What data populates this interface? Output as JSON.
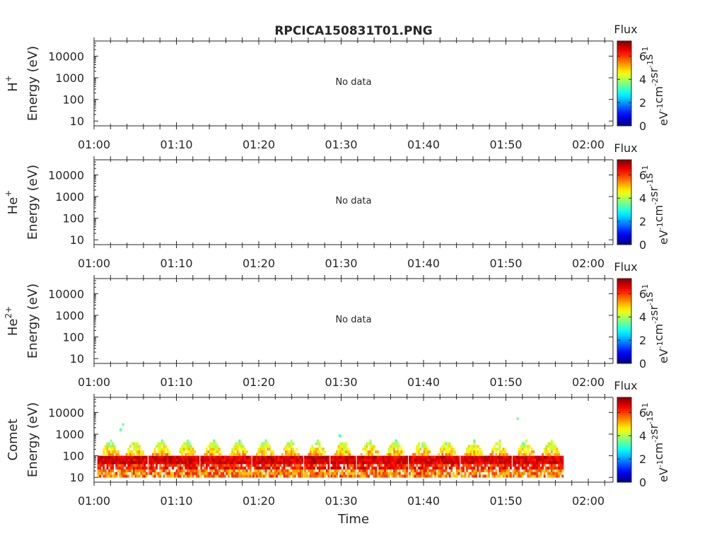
{
  "title": "RPCICA150831T01.PNG",
  "chart_data": [
    {
      "type": "heatmap",
      "ylabel_species": "H",
      "ylabel_species_sup": "+",
      "ylabel_units": "Energy (eV)",
      "status": "No data",
      "yticks": [
        "10",
        "100",
        "1000",
        "10000"
      ],
      "xticks": [
        "01:00",
        "01:10",
        "01:20",
        "01:30",
        "01:40",
        "01:50",
        "02:00"
      ],
      "colorbar": {
        "label": "Flux",
        "ticks": [
          "0",
          "2",
          "4",
          "6"
        ],
        "range": [
          0,
          7.3
        ],
        "units": "eV-1cm-2sr-1s-1"
      },
      "ylim_ev": [
        6,
        50000
      ],
      "xlim_min": [
        0,
        63
      ],
      "cells": []
    },
    {
      "type": "heatmap",
      "ylabel_species": "He",
      "ylabel_species_sup": "+",
      "ylabel_units": "Energy (eV)",
      "status": "No data",
      "yticks": [
        "10",
        "100",
        "1000",
        "10000"
      ],
      "xticks": [
        "01:00",
        "01:10",
        "01:20",
        "01:30",
        "01:40",
        "01:50",
        "02:00"
      ],
      "colorbar": {
        "label": "Flux",
        "ticks": [
          "0",
          "2",
          "4",
          "6"
        ],
        "range": [
          0,
          7.3
        ],
        "units": "eV-1cm-2sr-1s-1"
      },
      "ylim_ev": [
        6,
        50000
      ],
      "xlim_min": [
        0,
        63
      ],
      "cells": []
    },
    {
      "type": "heatmap",
      "ylabel_species": "He",
      "ylabel_species_sup": "2+",
      "ylabel_units": "Energy (eV)",
      "status": "No data",
      "yticks": [
        "10",
        "100",
        "1000",
        "10000"
      ],
      "xticks": [
        "01:00",
        "01:10",
        "01:20",
        "01:30",
        "01:40",
        "01:50",
        "02:00"
      ],
      "colorbar": {
        "label": "Flux",
        "ticks": [
          "0",
          "2",
          "4",
          "6"
        ],
        "range": [
          0,
          7.3
        ],
        "units": "eV-1cm-2sr-1s-1"
      },
      "ylim_ev": [
        6,
        50000
      ],
      "xlim_min": [
        0,
        63
      ],
      "cells": []
    },
    {
      "type": "heatmap",
      "ylabel_species": "Comet",
      "ylabel_species_sup": "",
      "ylabel_units": "Energy (eV)",
      "status": "",
      "xlabel": "Time",
      "yticks": [
        "10",
        "100",
        "1000",
        "10000"
      ],
      "xticks": [
        "01:00",
        "01:10",
        "01:20",
        "01:30",
        "01:40",
        "01:50",
        "02:00"
      ],
      "colorbar": {
        "label": "Flux",
        "ticks": [
          "0",
          "2",
          "4",
          "6"
        ],
        "range": [
          0,
          7.3
        ],
        "units": "eV-1cm-2sr-1s-1"
      },
      "ylim_ev": [
        6,
        50000
      ],
      "xlim_min": [
        0,
        63
      ],
      "pulses": {
        "start_min": [
          0.4,
          3.4,
          6.6,
          9.7,
          12.9,
          16.0,
          19.2,
          22.3,
          25.5,
          28.7,
          31.9,
          35.0,
          38.2,
          41.3,
          44.5,
          47.6,
          50.8,
          53.9
        ],
        "duration_min": 2.9,
        "peak_ev": 55,
        "peak_flux": 7.1
      },
      "isolated_points": [
        {
          "t_min": 3.4,
          "ev": 2800,
          "flux": 3.5
        },
        {
          "t_min": 3.1,
          "ev": 1600,
          "flux": 3.2
        },
        {
          "t_min": 29.7,
          "ev": 850,
          "flux": 3.0
        },
        {
          "t_min": 51.3,
          "ev": 5200,
          "flux": 3.6
        }
      ]
    }
  ]
}
